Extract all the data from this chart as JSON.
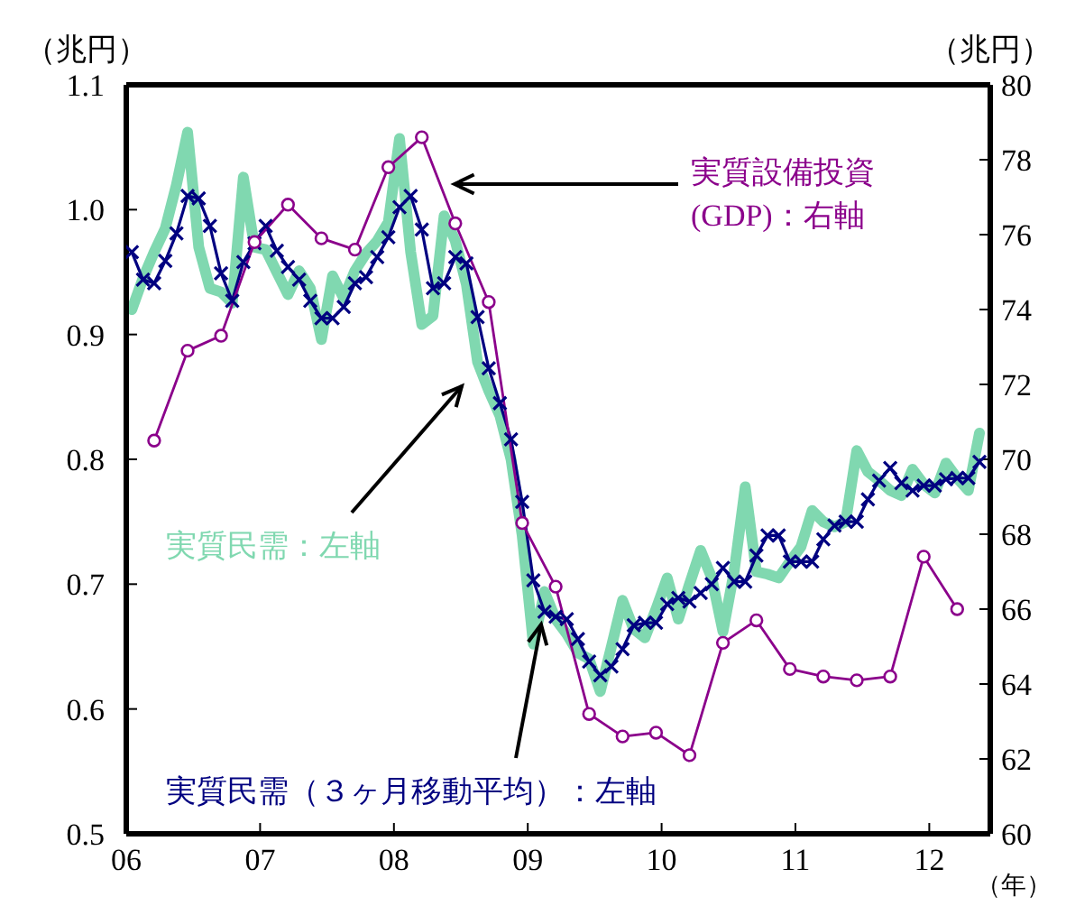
{
  "chart_data": {
    "type": "line",
    "ylabel": "（兆円）",
    "y2label": "（兆円）",
    "xlabel": "（年）",
    "x": [
      "2006-01-16",
      "2006-02-16",
      "2006-03-16",
      "2006-04-16",
      "2006-05-16",
      "2006-06-16",
      "2006-07-16",
      "2006-08-16",
      "2006-09-16",
      "2006-10-16",
      "2006-11-16",
      "2006-12-16",
      "2007-01-16",
      "2007-02-16",
      "2007-03-16",
      "2007-04-16",
      "2007-05-16",
      "2007-06-16",
      "2007-07-16",
      "2007-08-16",
      "2007-09-16",
      "2007-10-16",
      "2007-11-16",
      "2007-12-16",
      "2008-01-16",
      "2008-02-16",
      "2008-03-16",
      "2008-04-16",
      "2008-05-16",
      "2008-06-16",
      "2008-07-16",
      "2008-08-16",
      "2008-09-16",
      "2008-10-16",
      "2008-11-16",
      "2008-12-16",
      "2009-01-16",
      "2009-02-16",
      "2009-03-16",
      "2009-04-16",
      "2009-05-16",
      "2009-06-16",
      "2009-07-16",
      "2009-08-16",
      "2009-09-16",
      "2009-10-16",
      "2009-11-16",
      "2009-12-16",
      "2010-01-16",
      "2010-02-16",
      "2010-03-16",
      "2010-04-16",
      "2010-05-16",
      "2010-06-16",
      "2010-07-16",
      "2010-08-16",
      "2010-09-16",
      "2010-10-16",
      "2010-11-16",
      "2010-12-16",
      "2011-01-16",
      "2011-02-16",
      "2011-03-16",
      "2011-04-16",
      "2011-05-16",
      "2011-06-16",
      "2011-07-16",
      "2011-08-16",
      "2011-09-16",
      "2011-10-16",
      "2011-11-16",
      "2011-12-16",
      "2012-01-16",
      "2012-02-16",
      "2012-03-16",
      "2012-04-16",
      "2012-05-16"
    ],
    "series": [
      {
        "name": "実質民需：左軸",
        "color": "#80d8b0",
        "marker": "none",
        "values": [
          0.92,
          0.945,
          0.966,
          0.985,
          1.02,
          1.062,
          0.97,
          0.937,
          0.934,
          0.925,
          1.026,
          0.97,
          0.968,
          0.95,
          0.932,
          0.951,
          0.937,
          0.896,
          0.947,
          0.929,
          0.951,
          0.965,
          0.975,
          0.99,
          1.057,
          0.966,
          0.908,
          0.915,
          0.995,
          0.975,
          0.94,
          0.878,
          0.855,
          0.835,
          0.8,
          0.739,
          0.652,
          0.694,
          0.672,
          0.66,
          0.645,
          0.64,
          0.614,
          0.65,
          0.687,
          0.664,
          0.657,
          0.68,
          0.705,
          0.672,
          0.7,
          0.727,
          0.705,
          0.662,
          0.71,
          0.778,
          0.71,
          0.708,
          0.705,
          0.718,
          0.73,
          0.759,
          0.75,
          0.746,
          0.75,
          0.807,
          0.79,
          0.783,
          0.775,
          0.771,
          0.792,
          0.78,
          0.773,
          0.797,
          0.785,
          0.775,
          0.821
        ]
      },
      {
        "name": "実質民需（３ヶ月移動平均）：左軸",
        "color": "#000080",
        "marker": "cross",
        "values": [
          0.966,
          0.944,
          0.941,
          0.959,
          0.981,
          1.011,
          1.009,
          0.987,
          0.949,
          0.927,
          0.958,
          0.973,
          0.987,
          0.967,
          0.954,
          0.944,
          0.927,
          0.913,
          0.913,
          0.922,
          0.941,
          0.946,
          0.962,
          0.978,
          1.002,
          1.011,
          0.984,
          0.937,
          0.941,
          0.962,
          0.957,
          0.914,
          0.873,
          0.845,
          0.816,
          0.766,
          0.703,
          0.678,
          0.674,
          0.672,
          0.656,
          0.638,
          0.627,
          0.634,
          0.648,
          0.667,
          0.669,
          0.669,
          0.684,
          0.689,
          0.686,
          0.693,
          0.7,
          0.713,
          0.702,
          0.702,
          0.723,
          0.739,
          0.739,
          0.718,
          0.718,
          0.718,
          0.736,
          0.747,
          0.75,
          0.75,
          0.768,
          0.783,
          0.793,
          0.781,
          0.775,
          0.779,
          0.779,
          0.784,
          0.785,
          0.785,
          0.798
        ]
      },
      {
        "name": "実質設備投資(GDP)：右軸",
        "color": "#8b008b",
        "marker": "circle",
        "axis": "y2",
        "x": [
          "2006-03-16",
          "2006-06-16",
          "2006-09-16",
          "2006-12-16",
          "2007-03-16",
          "2007-06-16",
          "2007-09-16",
          "2007-12-16",
          "2008-03-16",
          "2008-06-16",
          "2008-09-16",
          "2008-12-16",
          "2009-03-16",
          "2009-06-16",
          "2009-09-16",
          "2009-12-16",
          "2010-03-16",
          "2010-06-16",
          "2010-09-16",
          "2010-12-16",
          "2011-03-16",
          "2011-06-16",
          "2011-09-16",
          "2011-12-16",
          "2012-03-16"
        ],
        "values": [
          70.5,
          72.9,
          73.3,
          75.8,
          76.8,
          75.9,
          75.6,
          77.8,
          78.6,
          76.3,
          74.2,
          68.3,
          66.6,
          63.2,
          62.6,
          62.7,
          62.1,
          65.1,
          65.7,
          64.4,
          64.2,
          64.1,
          64.2,
          67.4,
          66.0
        ]
      }
    ],
    "xlim": [
      "2006-01-01",
      "2012-06-15"
    ],
    "xticks": [
      {
        "value": "2006-01-01",
        "label": "06"
      },
      {
        "value": "2007-01-01",
        "label": "07"
      },
      {
        "value": "2008-01-01",
        "label": "08"
      },
      {
        "value": "2009-01-01",
        "label": "09"
      },
      {
        "value": "2010-01-01",
        "label": "10"
      },
      {
        "value": "2011-01-01",
        "label": "11"
      },
      {
        "value": "2012-01-01",
        "label": "12"
      }
    ],
    "ylim": [
      0.5,
      1.1
    ],
    "yticks": [
      0.5,
      0.6,
      0.7,
      0.8,
      0.9,
      {
        "value": 1,
        "label": "1.0"
      },
      1.1
    ],
    "y2lim": [
      60,
      80
    ],
    "y2ticks": [
      60,
      62,
      64,
      66,
      68,
      70,
      72,
      74,
      76,
      78,
      80
    ],
    "grid": false,
    "legend": false
  }
}
